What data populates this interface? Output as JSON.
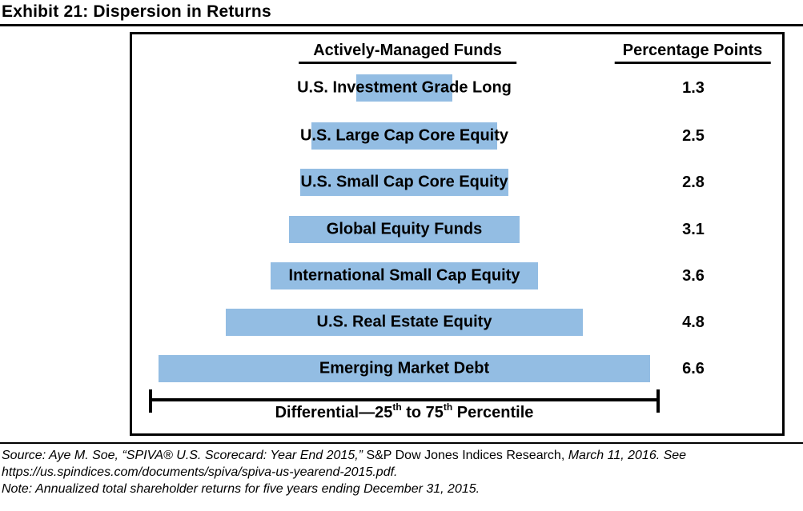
{
  "title": "Exhibit 21: Dispersion in Returns",
  "chart_data": {
    "type": "bar",
    "orientation": "horizontal",
    "alignment": "center",
    "title": "Exhibit 21: Dispersion in Returns",
    "category_header": "Actively-Managed Funds",
    "value_header": "Percentage Points",
    "categories": [
      "U.S. Investment Grade Long",
      "U.S. Large Cap Core Equity",
      "U.S. Small Cap Core Equity",
      "Global Equity Funds",
      "International Small Cap Equity",
      "U.S. Real Estate Equity",
      "Emerging Market Debt"
    ],
    "values": [
      1.3,
      2.5,
      2.8,
      3.1,
      3.6,
      4.8,
      6.6
    ],
    "bar_color": "#93BDE3",
    "annotation": "Differential—25th to 75th Percentile"
  },
  "differential": {
    "part1": "Differential—25",
    "sup1": "th",
    "part2": " to 75",
    "sup2": "th",
    "part3": " Percentile"
  },
  "footnotes": {
    "source_italic_1": "Source: Aye M. Soe, “SPIVA® U.S. Scorecard: Year End 2015,” ",
    "source_upright": "S&P Dow Jones Indices Research, ",
    "source_italic_2": "March 11, 2016. See",
    "source_line2": "https://us.spindices.com/documents/spiva/spiva-us-yearend-2015.pdf.",
    "note": "Note: Annualized total shareholder returns for five years ending December 31, 2015."
  }
}
